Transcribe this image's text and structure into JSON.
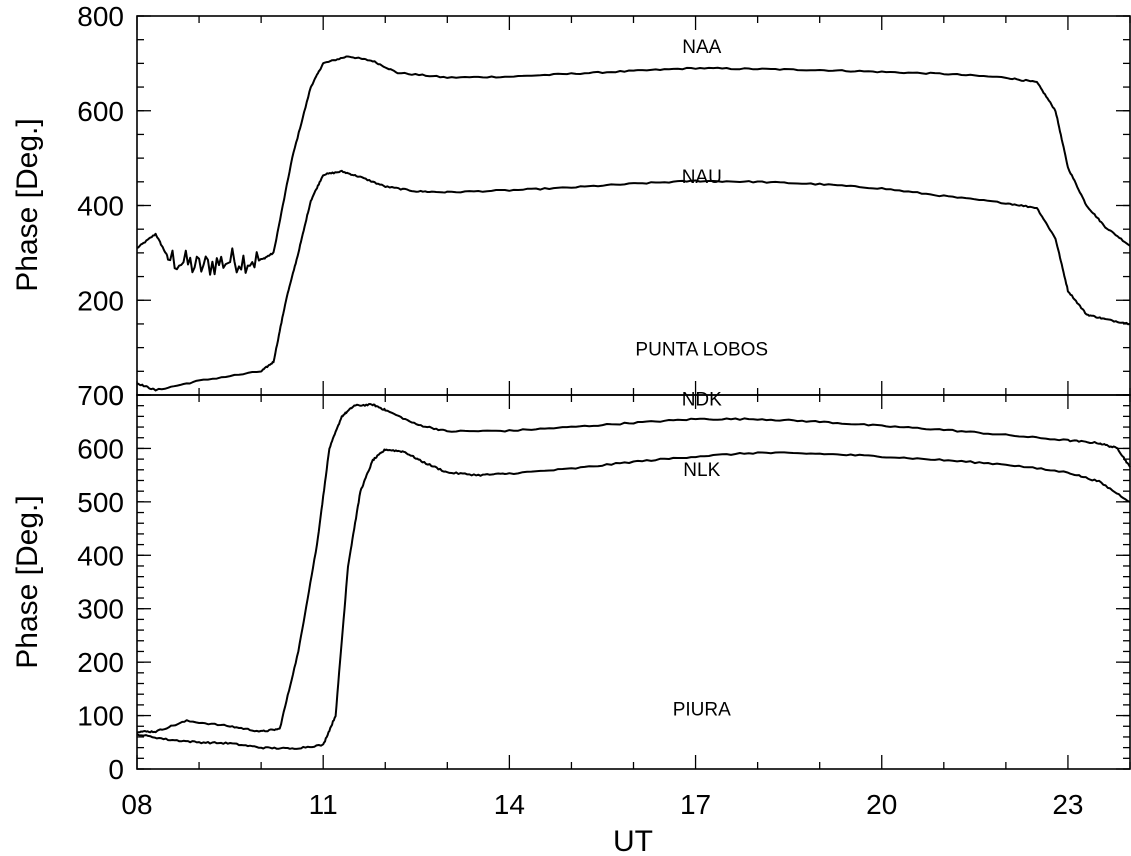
{
  "chart_data": [
    {
      "type": "line",
      "title": "",
      "xlabel": "",
      "ylabel": "Phase [Deg.]",
      "xlim": [
        8,
        24
      ],
      "ylim": [
        0,
        800
      ],
      "yticks": [
        "0",
        "200",
        "400",
        "600",
        "800"
      ],
      "grid": false,
      "annotations": [
        {
          "text": "NAA",
          "x": 17.1,
          "y": 722
        },
        {
          "text": "NAU",
          "x": 17.1,
          "y": 448
        },
        {
          "text": "PUNTA LOBOS",
          "x": 17.1,
          "y": 83
        }
      ],
      "series": [
        {
          "name": "NAA",
          "x": [
            8.0,
            8.3,
            8.5,
            9.0,
            9.5,
            10.0,
            10.2,
            10.5,
            10.8,
            11.0,
            11.4,
            11.8,
            12.2,
            13.0,
            14.0,
            15.0,
            16.0,
            17.0,
            18.0,
            19.0,
            20.0,
            21.0,
            22.0,
            22.5,
            22.8,
            23.0,
            23.3,
            23.6,
            24.0
          ],
          "y": [
            310,
            340,
            290,
            270,
            285,
            285,
            300,
            500,
            650,
            700,
            715,
            705,
            680,
            670,
            672,
            678,
            684,
            690,
            688,
            686,
            682,
            678,
            670,
            660,
            600,
            480,
            400,
            355,
            315
          ],
          "noisy_range": [
            8.5,
            10.0
          ]
        },
        {
          "name": "NAU",
          "x": [
            8.0,
            8.3,
            9.0,
            10.0,
            10.2,
            10.4,
            10.6,
            10.8,
            11.0,
            11.3,
            11.6,
            12.0,
            12.5,
            13.0,
            14.0,
            15.0,
            16.0,
            17.0,
            18.0,
            19.0,
            20.0,
            21.0,
            22.0,
            22.5,
            22.8,
            23.0,
            23.3,
            23.6,
            24.0
          ],
          "y": [
            25,
            10,
            30,
            50,
            70,
            200,
            300,
            410,
            465,
            472,
            460,
            440,
            430,
            428,
            432,
            438,
            446,
            452,
            450,
            445,
            436,
            420,
            405,
            395,
            330,
            220,
            170,
            160,
            150
          ]
        }
      ]
    },
    {
      "type": "line",
      "title": "",
      "xlabel": "UT",
      "ylabel": "Phase [Deg.]",
      "xlim": [
        8,
        24
      ],
      "ylim": [
        0,
        700
      ],
      "xticks": [
        "08",
        "11",
        "14",
        "17",
        "20",
        "23"
      ],
      "yticks": [
        "0",
        "100",
        "200",
        "300",
        "400",
        "500",
        "600",
        "700"
      ],
      "grid": false,
      "annotations": [
        {
          "text": "NDK",
          "x": 17.1,
          "y": 680
        },
        {
          "text": "NLK",
          "x": 17.1,
          "y": 548
        },
        {
          "text": "PIURA",
          "x": 17.1,
          "y": 100
        }
      ],
      "series": [
        {
          "name": "NDK",
          "x": [
            8.0,
            8.3,
            8.8,
            9.5,
            10.0,
            10.3,
            10.6,
            10.9,
            11.1,
            11.3,
            11.5,
            11.8,
            12.0,
            12.5,
            13.0,
            14.0,
            15.0,
            16.0,
            17.0,
            18.0,
            19.0,
            20.0,
            21.0,
            22.0,
            23.0,
            23.5,
            23.8,
            24.0
          ],
          "y": [
            70,
            70,
            90,
            80,
            70,
            75,
            220,
            420,
            600,
            660,
            680,
            682,
            672,
            645,
            632,
            633,
            640,
            648,
            655,
            655,
            650,
            642,
            635,
            625,
            615,
            610,
            600,
            565
          ]
        },
        {
          "name": "NLK",
          "x": [
            8.0,
            8.5,
            9.0,
            9.5,
            10.0,
            10.5,
            11.0,
            11.2,
            11.4,
            11.6,
            11.8,
            12.0,
            12.3,
            12.6,
            13.0,
            13.5,
            14.0,
            15.0,
            16.0,
            17.0,
            18.0,
            19.0,
            20.0,
            21.0,
            22.0,
            23.0,
            23.5,
            24.0
          ],
          "y": [
            65,
            55,
            50,
            48,
            40,
            38,
            45,
            100,
            380,
            520,
            578,
            598,
            594,
            575,
            555,
            550,
            553,
            562,
            575,
            585,
            592,
            590,
            585,
            578,
            570,
            555,
            538,
            500
          ]
        }
      ]
    }
  ]
}
